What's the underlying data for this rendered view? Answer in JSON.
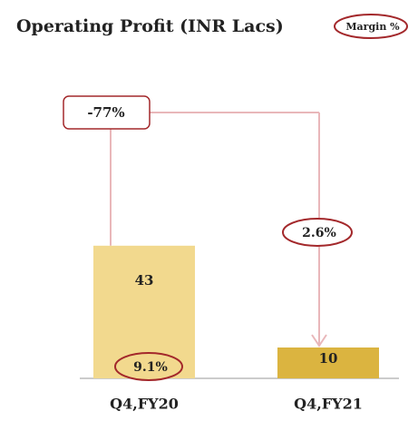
{
  "chart_data": {
    "type": "bar",
    "title": "Operating Profit (INR Lacs)",
    "categories": [
      "Q4,FY20",
      "Q4,FY21"
    ],
    "values": [
      43,
      10
    ],
    "colors": [
      "#f2d98e",
      "#dbb440"
    ],
    "margin": {
      "name": "Margin %",
      "values": [
        9.1,
        2.6
      ],
      "value_labels": [
        "9.1%",
        "2.6%"
      ],
      "color": "#a3282b"
    },
    "change": {
      "value": -77,
      "label": "-77%"
    }
  }
}
